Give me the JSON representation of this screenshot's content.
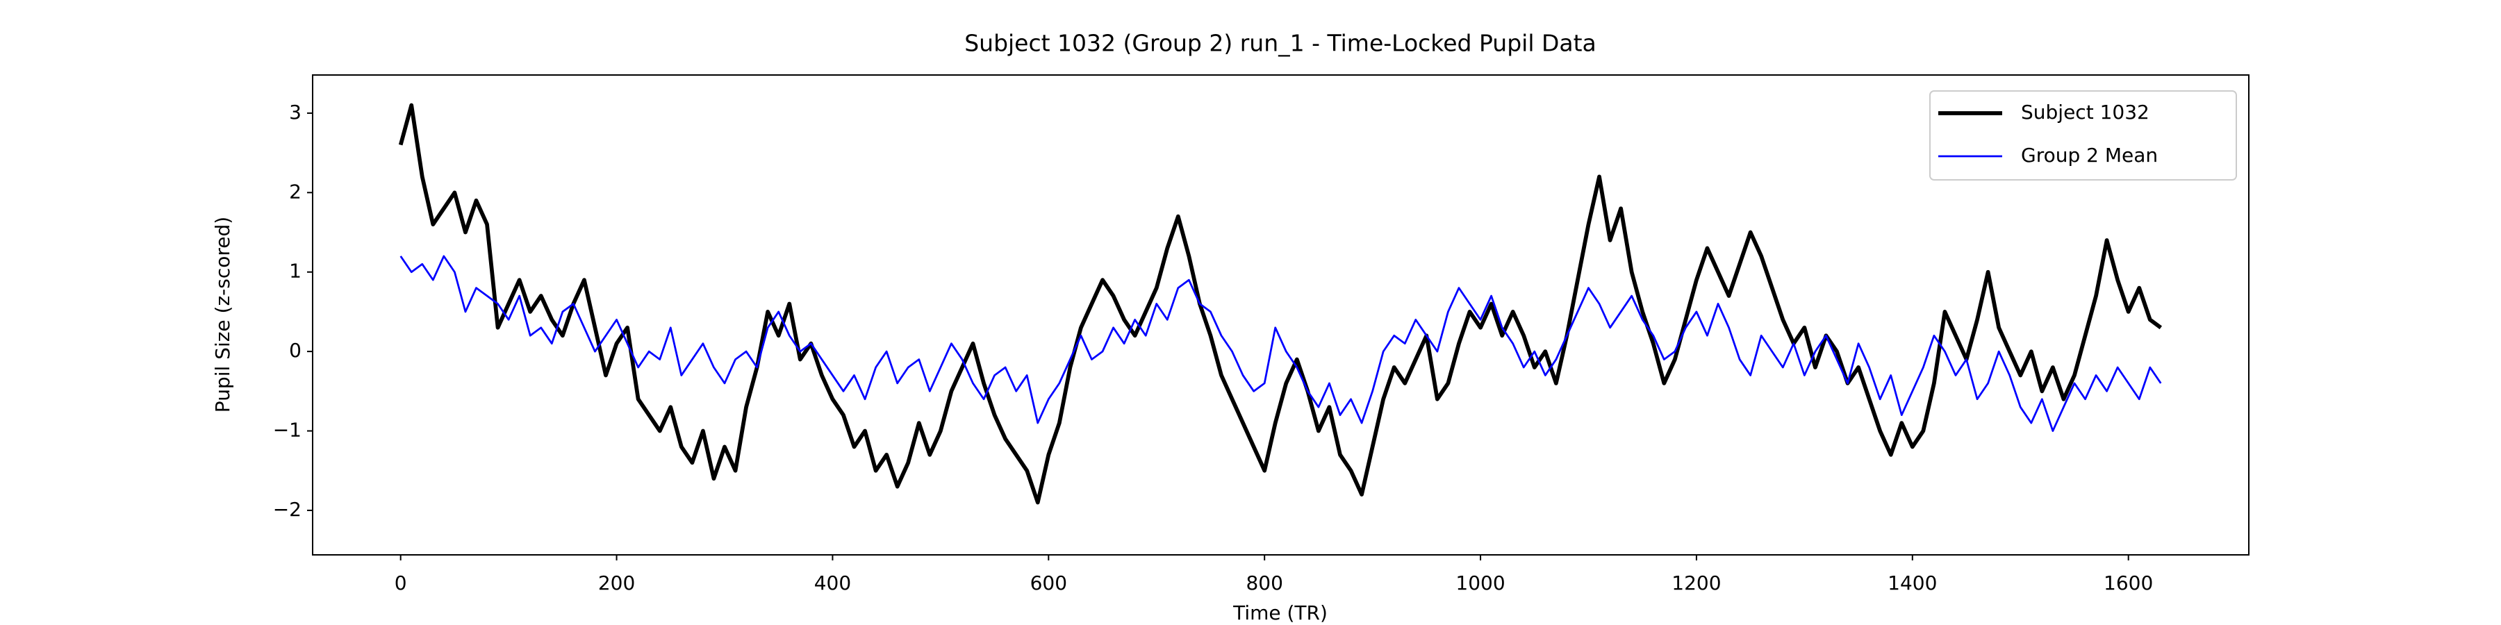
{
  "chart_data": {
    "type": "line",
    "title": "Subject 1032 (Group 2) run_1 - Time-Locked Pupil Data",
    "xlabel": "Time (TR)",
    "ylabel": "Pupil Size (z-scored)",
    "xlim": [
      -81.5,
      1711.5
    ],
    "ylim": [
      -2.56,
      3.48
    ],
    "xticks": [
      0,
      200,
      400,
      600,
      800,
      1000,
      1200,
      1400,
      1600
    ],
    "yticks": [
      {
        "value": -2,
        "label": "−2"
      },
      {
        "value": -1,
        "label": "−1"
      },
      0,
      1,
      2,
      3
    ],
    "legend": "upper right",
    "x": [
      0,
      10,
      20,
      30,
      40,
      50,
      60,
      70,
      80,
      90,
      100,
      110,
      120,
      130,
      140,
      150,
      160,
      170,
      180,
      190,
      200,
      210,
      220,
      230,
      240,
      250,
      260,
      270,
      280,
      290,
      300,
      310,
      320,
      330,
      340,
      350,
      360,
      370,
      380,
      390,
      400,
      410,
      420,
      430,
      440,
      450,
      460,
      470,
      480,
      490,
      500,
      510,
      520,
      530,
      540,
      550,
      560,
      570,
      580,
      590,
      600,
      610,
      620,
      630,
      640,
      650,
      660,
      670,
      680,
      690,
      700,
      710,
      720,
      730,
      740,
      750,
      760,
      770,
      780,
      790,
      800,
      810,
      820,
      830,
      840,
      850,
      860,
      870,
      880,
      890,
      900,
      910,
      920,
      930,
      940,
      950,
      960,
      970,
      980,
      990,
      1000,
      1010,
      1020,
      1030,
      1040,
      1050,
      1060,
      1070,
      1080,
      1090,
      1100,
      1110,
      1120,
      1130,
      1140,
      1150,
      1160,
      1170,
      1180,
      1190,
      1200,
      1210,
      1220,
      1230,
      1240,
      1250,
      1260,
      1270,
      1280,
      1290,
      1300,
      1310,
      1320,
      1330,
      1340,
      1350,
      1360,
      1370,
      1380,
      1390,
      1400,
      1410,
      1420,
      1430,
      1440,
      1450,
      1460,
      1470,
      1480,
      1490,
      1500,
      1510,
      1520,
      1530,
      1540,
      1550,
      1560,
      1570,
      1580,
      1590,
      1600,
      1610,
      1620,
      1630
    ],
    "series": [
      {
        "name": "Subject 1032",
        "color": "#000000",
        "width": 2.5,
        "values": [
          2.6,
          3.1,
          2.2,
          1.6,
          1.8,
          2.0,
          1.5,
          1.9,
          1.6,
          0.3,
          0.6,
          0.9,
          0.5,
          0.7,
          0.4,
          0.2,
          0.6,
          0.9,
          0.3,
          -0.3,
          0.1,
          0.3,
          -0.6,
          -0.8,
          -1.0,
          -0.7,
          -1.2,
          -1.4,
          -1.0,
          -1.6,
          -1.2,
          -1.5,
          -0.7,
          -0.2,
          0.5,
          0.2,
          0.6,
          -0.1,
          0.1,
          -0.3,
          -0.6,
          -0.8,
          -1.2,
          -1.0,
          -1.5,
          -1.3,
          -1.7,
          -1.4,
          -0.9,
          -1.3,
          -1.0,
          -0.5,
          -0.2,
          0.1,
          -0.4,
          -0.8,
          -1.1,
          -1.3,
          -1.5,
          -1.9,
          -1.3,
          -0.9,
          -0.2,
          0.3,
          0.6,
          0.9,
          0.7,
          0.4,
          0.2,
          0.5,
          0.8,
          1.3,
          1.7,
          1.2,
          0.6,
          0.2,
          -0.3,
          -0.6,
          -0.9,
          -1.2,
          -1.5,
          -0.9,
          -0.4,
          -0.1,
          -0.5,
          -1.0,
          -0.7,
          -1.3,
          -1.5,
          -1.8,
          -1.2,
          -0.6,
          -0.2,
          -0.4,
          -0.1,
          0.2,
          -0.6,
          -0.4,
          0.1,
          0.5,
          0.3,
          0.6,
          0.2,
          0.5,
          0.2,
          -0.2,
          0.0,
          -0.4,
          0.2,
          0.9,
          1.6,
          2.2,
          1.4,
          1.8,
          1.0,
          0.5,
          0.1,
          -0.4,
          -0.1,
          0.4,
          0.9,
          1.3,
          1.0,
          0.7,
          1.1,
          1.5,
          1.2,
          0.8,
          0.4,
          0.1,
          0.3,
          -0.2,
          0.2,
          0.0,
          -0.4,
          -0.2,
          -0.6,
          -1.0,
          -1.3,
          -0.9,
          -1.2,
          -1.0,
          -0.4,
          0.5,
          0.2,
          -0.1,
          0.4,
          1.0,
          0.3,
          0.0,
          -0.3,
          0.0,
          -0.5,
          -0.2,
          -0.6,
          -0.3,
          0.2,
          0.7,
          1.4,
          0.9,
          0.5,
          0.8,
          0.4,
          0.3
        ]
      },
      {
        "name": "Group 2 Mean",
        "color": "#0000ff",
        "width": 1.2,
        "values": [
          1.2,
          1.0,
          1.1,
          0.9,
          1.2,
          1.0,
          0.5,
          0.8,
          0.7,
          0.6,
          0.4,
          0.7,
          0.2,
          0.3,
          0.1,
          0.5,
          0.6,
          0.3,
          0.0,
          0.2,
          0.4,
          0.1,
          -0.2,
          0.0,
          -0.1,
          0.3,
          -0.3,
          -0.1,
          0.1,
          -0.2,
          -0.4,
          -0.1,
          0.0,
          -0.2,
          0.3,
          0.5,
          0.2,
          0.0,
          0.1,
          -0.1,
          -0.3,
          -0.5,
          -0.3,
          -0.6,
          -0.2,
          0.0,
          -0.4,
          -0.2,
          -0.1,
          -0.5,
          -0.2,
          0.1,
          -0.1,
          -0.4,
          -0.6,
          -0.3,
          -0.2,
          -0.5,
          -0.3,
          -0.9,
          -0.6,
          -0.4,
          -0.1,
          0.2,
          -0.1,
          0.0,
          0.3,
          0.1,
          0.4,
          0.2,
          0.6,
          0.4,
          0.8,
          0.9,
          0.6,
          0.5,
          0.2,
          0.0,
          -0.3,
          -0.5,
          -0.4,
          0.3,
          0.0,
          -0.2,
          -0.5,
          -0.7,
          -0.4,
          -0.8,
          -0.6,
          -0.9,
          -0.5,
          0.0,
          0.2,
          0.1,
          0.4,
          0.2,
          0.0,
          0.5,
          0.8,
          0.6,
          0.4,
          0.7,
          0.3,
          0.1,
          -0.2,
          0.0,
          -0.3,
          -0.1,
          0.2,
          0.5,
          0.8,
          0.6,
          0.3,
          0.5,
          0.7,
          0.4,
          0.2,
          -0.1,
          0.0,
          0.3,
          0.5,
          0.2,
          0.6,
          0.3,
          -0.1,
          -0.3,
          0.2,
          0.0,
          -0.2,
          0.1,
          -0.3,
          0.0,
          0.2,
          -0.1,
          -0.4,
          0.1,
          -0.2,
          -0.6,
          -0.3,
          -0.8,
          -0.5,
          -0.2,
          0.2,
          0.0,
          -0.3,
          -0.1,
          -0.6,
          -0.4,
          0.0,
          -0.3,
          -0.7,
          -0.9,
          -0.6,
          -1.0,
          -0.7,
          -0.4,
          -0.6,
          -0.3,
          -0.5,
          -0.2,
          -0.4,
          -0.6,
          -0.2,
          -0.4
        ]
      }
    ]
  }
}
